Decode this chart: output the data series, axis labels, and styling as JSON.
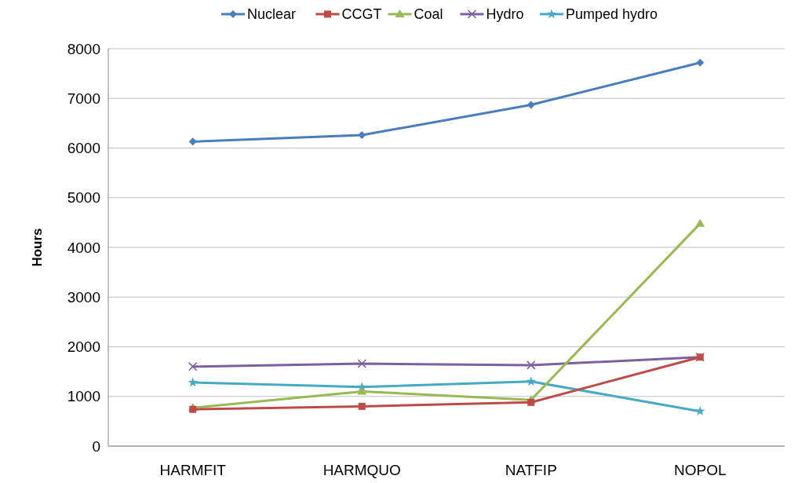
{
  "chart_data": {
    "type": "line",
    "ylabel": "Hours",
    "categories": [
      "HARMFIT",
      "HARMQUO",
      "NATFIP",
      "NOPOL"
    ],
    "series": [
      {
        "name": "Nuclear",
        "color": "#4a7ebb",
        "marker": "diamond",
        "values": [
          6130,
          6260,
          6870,
          7720
        ]
      },
      {
        "name": "CCGT",
        "color": "#be4b48",
        "marker": "square",
        "values": [
          740,
          800,
          880,
          1790
        ]
      },
      {
        "name": "Coal",
        "color": "#98b954",
        "marker": "triangle",
        "values": [
          770,
          1100,
          930,
          4480
        ]
      },
      {
        "name": "Hydro",
        "color": "#7d60a0",
        "marker": "cross",
        "values": [
          1600,
          1660,
          1630,
          1790
        ]
      },
      {
        "name": "Pumped hydro",
        "color": "#46aac5",
        "marker": "star",
        "values": [
          1280,
          1190,
          1300,
          700
        ]
      }
    ],
    "ylim": [
      0,
      8000
    ],
    "yticks": [
      0,
      1000,
      2000,
      3000,
      4000,
      5000,
      6000,
      7000,
      8000
    ],
    "grid": "y",
    "legend": "top",
    "line_style": "solid"
  }
}
